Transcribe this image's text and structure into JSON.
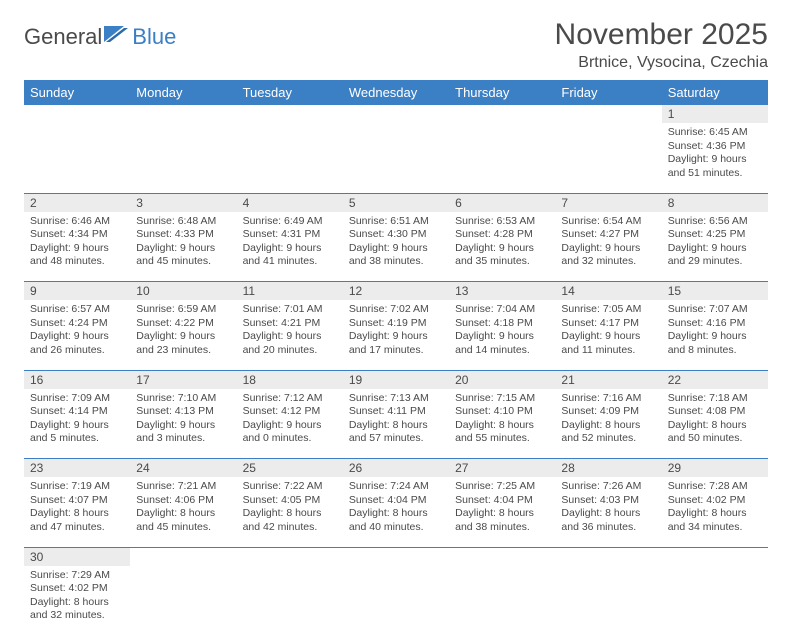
{
  "logo": {
    "text1": "General",
    "text2": "Blue"
  },
  "title": "November 2025",
  "location": "Brtnice, Vysocina, Czechia",
  "colors": {
    "header_bg": "#3b7fc4",
    "header_text": "#ffffff",
    "daynum_bg": "#ececec",
    "text": "#4a4a4a",
    "divider": "#3b7fc4"
  },
  "day_names": [
    "Sunday",
    "Monday",
    "Tuesday",
    "Wednesday",
    "Thursday",
    "Friday",
    "Saturday"
  ],
  "weeks": [
    [
      null,
      null,
      null,
      null,
      null,
      null,
      {
        "n": "1",
        "sr": "6:45 AM",
        "ss": "4:36 PM",
        "dl": "9 hours and 51 minutes."
      }
    ],
    [
      {
        "n": "2",
        "sr": "6:46 AM",
        "ss": "4:34 PM",
        "dl": "9 hours and 48 minutes."
      },
      {
        "n": "3",
        "sr": "6:48 AM",
        "ss": "4:33 PM",
        "dl": "9 hours and 45 minutes."
      },
      {
        "n": "4",
        "sr": "6:49 AM",
        "ss": "4:31 PM",
        "dl": "9 hours and 41 minutes."
      },
      {
        "n": "5",
        "sr": "6:51 AM",
        "ss": "4:30 PM",
        "dl": "9 hours and 38 minutes."
      },
      {
        "n": "6",
        "sr": "6:53 AM",
        "ss": "4:28 PM",
        "dl": "9 hours and 35 minutes."
      },
      {
        "n": "7",
        "sr": "6:54 AM",
        "ss": "4:27 PM",
        "dl": "9 hours and 32 minutes."
      },
      {
        "n": "8",
        "sr": "6:56 AM",
        "ss": "4:25 PM",
        "dl": "9 hours and 29 minutes."
      }
    ],
    [
      {
        "n": "9",
        "sr": "6:57 AM",
        "ss": "4:24 PM",
        "dl": "9 hours and 26 minutes."
      },
      {
        "n": "10",
        "sr": "6:59 AM",
        "ss": "4:22 PM",
        "dl": "9 hours and 23 minutes."
      },
      {
        "n": "11",
        "sr": "7:01 AM",
        "ss": "4:21 PM",
        "dl": "9 hours and 20 minutes."
      },
      {
        "n": "12",
        "sr": "7:02 AM",
        "ss": "4:19 PM",
        "dl": "9 hours and 17 minutes."
      },
      {
        "n": "13",
        "sr": "7:04 AM",
        "ss": "4:18 PM",
        "dl": "9 hours and 14 minutes."
      },
      {
        "n": "14",
        "sr": "7:05 AM",
        "ss": "4:17 PM",
        "dl": "9 hours and 11 minutes."
      },
      {
        "n": "15",
        "sr": "7:07 AM",
        "ss": "4:16 PM",
        "dl": "9 hours and 8 minutes."
      }
    ],
    [
      {
        "n": "16",
        "sr": "7:09 AM",
        "ss": "4:14 PM",
        "dl": "9 hours and 5 minutes."
      },
      {
        "n": "17",
        "sr": "7:10 AM",
        "ss": "4:13 PM",
        "dl": "9 hours and 3 minutes."
      },
      {
        "n": "18",
        "sr": "7:12 AM",
        "ss": "4:12 PM",
        "dl": "9 hours and 0 minutes."
      },
      {
        "n": "19",
        "sr": "7:13 AM",
        "ss": "4:11 PM",
        "dl": "8 hours and 57 minutes."
      },
      {
        "n": "20",
        "sr": "7:15 AM",
        "ss": "4:10 PM",
        "dl": "8 hours and 55 minutes."
      },
      {
        "n": "21",
        "sr": "7:16 AM",
        "ss": "4:09 PM",
        "dl": "8 hours and 52 minutes."
      },
      {
        "n": "22",
        "sr": "7:18 AM",
        "ss": "4:08 PM",
        "dl": "8 hours and 50 minutes."
      }
    ],
    [
      {
        "n": "23",
        "sr": "7:19 AM",
        "ss": "4:07 PM",
        "dl": "8 hours and 47 minutes."
      },
      {
        "n": "24",
        "sr": "7:21 AM",
        "ss": "4:06 PM",
        "dl": "8 hours and 45 minutes."
      },
      {
        "n": "25",
        "sr": "7:22 AM",
        "ss": "4:05 PM",
        "dl": "8 hours and 42 minutes."
      },
      {
        "n": "26",
        "sr": "7:24 AM",
        "ss": "4:04 PM",
        "dl": "8 hours and 40 minutes."
      },
      {
        "n": "27",
        "sr": "7:25 AM",
        "ss": "4:04 PM",
        "dl": "8 hours and 38 minutes."
      },
      {
        "n": "28",
        "sr": "7:26 AM",
        "ss": "4:03 PM",
        "dl": "8 hours and 36 minutes."
      },
      {
        "n": "29",
        "sr": "7:28 AM",
        "ss": "4:02 PM",
        "dl": "8 hours and 34 minutes."
      }
    ],
    [
      {
        "n": "30",
        "sr": "7:29 AM",
        "ss": "4:02 PM",
        "dl": "8 hours and 32 minutes."
      },
      null,
      null,
      null,
      null,
      null,
      null
    ]
  ],
  "labels": {
    "sunrise": "Sunrise: ",
    "sunset": "Sunset: ",
    "daylight": "Daylight: "
  }
}
